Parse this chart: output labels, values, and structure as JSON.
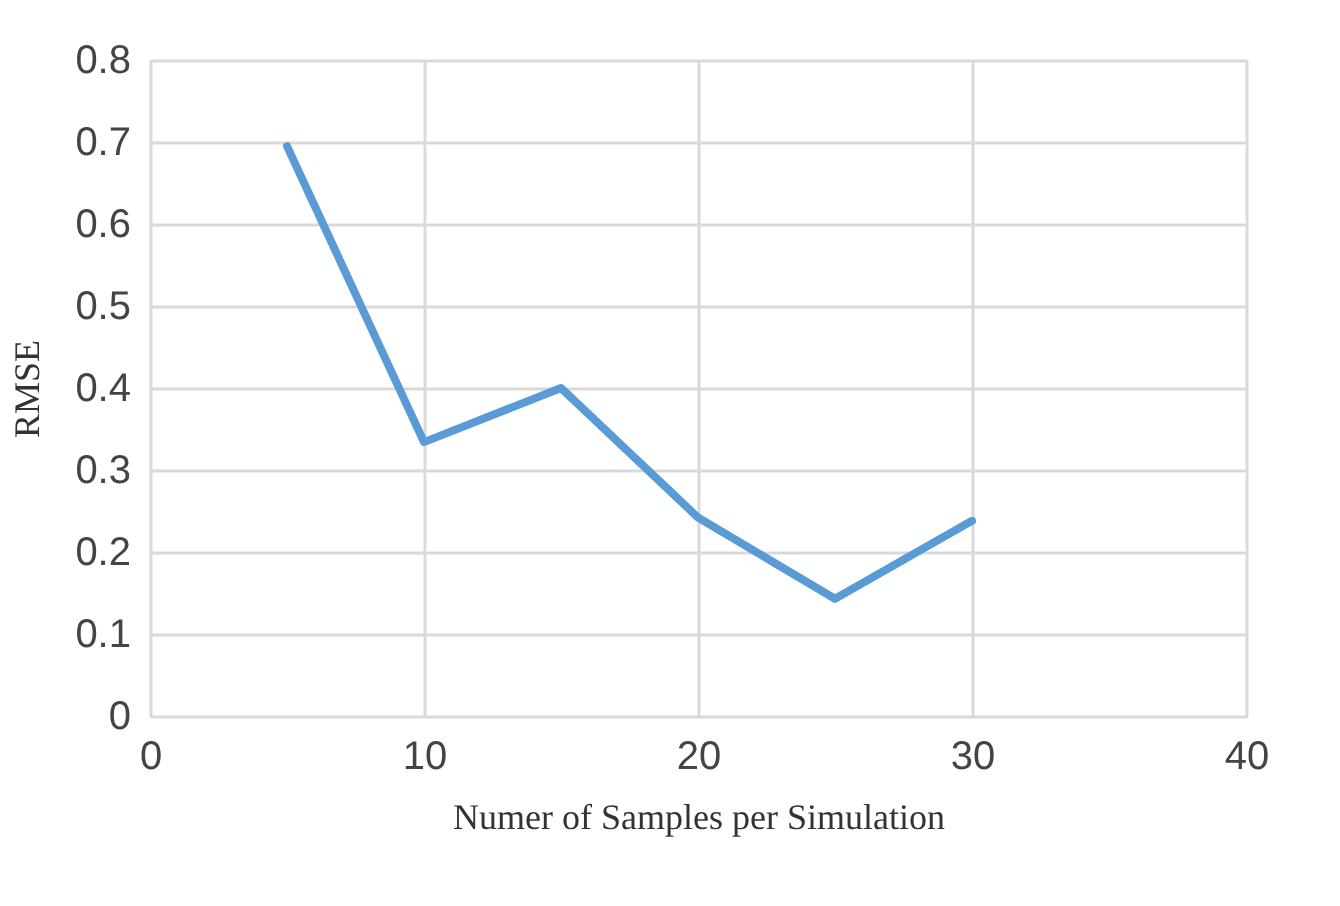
{
  "chart_data": {
    "type": "line",
    "xlabel": "Numer of Samples per Simulation",
    "ylabel": "RMSE",
    "x": [
      5,
      10,
      15,
      20,
      25,
      30
    ],
    "series": [
      {
        "color": "#5b9bd5",
        "values": [
          0.695,
          0.334,
          0.4,
          0.242,
          0.143,
          0.238
        ]
      }
    ],
    "xlim": [
      0,
      40
    ],
    "xticks": [
      0,
      10,
      20,
      30,
      40
    ],
    "ylim": [
      0,
      0.8
    ],
    "yticks": [
      0,
      0.1,
      0.2,
      0.3,
      0.4,
      0.5,
      0.6,
      0.7,
      0.8
    ],
    "grid": true,
    "marker": "none",
    "line_style": "solid"
  }
}
